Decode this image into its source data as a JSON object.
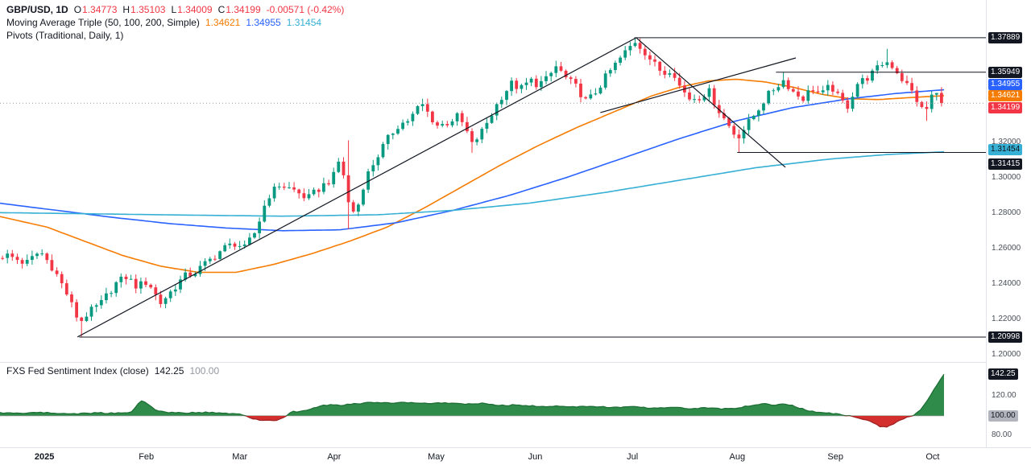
{
  "legend": {
    "row1": {
      "symbol": "GBP/USD, 1D",
      "o_label": "O",
      "o_value": "1.34773",
      "h_label": "H",
      "h_value": "1.35103",
      "l_label": "L",
      "l_value": "1.34009",
      "c_label": "C",
      "c_value": "1.34199",
      "change": "-0.00571 (-0.42%)"
    },
    "row2": {
      "label": "Moving Average Triple (50, 100, 200, Simple)",
      "ma50": "1.34621",
      "ma100": "1.34955",
      "ma200": "1.31454"
    },
    "row3": {
      "label": "Pivots (Traditional, Daily, 1)"
    }
  },
  "sentiment_legend": {
    "label": "FXS Fed Sentiment Index (close)",
    "value": "142.25",
    "base": "100.00"
  },
  "chart_data": {
    "type": "candlestick",
    "symbol": "GBP/USD",
    "timeframe": "1D",
    "ohlc_current": {
      "open": 1.34773,
      "high": 1.35103,
      "low": 1.34009,
      "close": 1.34199,
      "change": -0.00571,
      "change_pct": -0.42
    },
    "bars": 191,
    "price_domain": [
      1.1968,
      1.4002
    ],
    "colors": {
      "up": "#089981",
      "down": "#f23645"
    },
    "price_anchors": [
      [
        0.006,
        1.256
      ],
      [
        0.025,
        1.2515
      ],
      [
        0.04,
        1.2585
      ],
      [
        0.055,
        1.248
      ],
      [
        0.068,
        1.235
      ],
      [
        0.082,
        1.218
      ],
      [
        0.09,
        1.223
      ],
      [
        0.105,
        1.229
      ],
      [
        0.12,
        1.24
      ],
      [
        0.132,
        1.244
      ],
      [
        0.143,
        1.2385
      ],
      [
        0.155,
        1.2415
      ],
      [
        0.168,
        1.229
      ],
      [
        0.18,
        1.236
      ],
      [
        0.193,
        1.244
      ],
      [
        0.205,
        1.2465
      ],
      [
        0.22,
        1.253
      ],
      [
        0.235,
        1.26
      ],
      [
        0.248,
        1.263
      ],
      [
        0.258,
        1.26
      ],
      [
        0.27,
        1.27
      ],
      [
        0.282,
        1.289
      ],
      [
        0.295,
        1.296
      ],
      [
        0.31,
        1.293
      ],
      [
        0.325,
        1.288
      ],
      [
        0.34,
        1.295
      ],
      [
        0.352,
        1.3
      ],
      [
        0.36,
        1.312
      ],
      [
        0.368,
        1.286
      ],
      [
        0.376,
        1.279
      ],
      [
        0.386,
        1.299
      ],
      [
        0.396,
        1.309
      ],
      [
        0.408,
        1.32
      ],
      [
        0.42,
        1.329
      ],
      [
        0.434,
        1.333
      ],
      [
        0.446,
        1.342
      ],
      [
        0.456,
        1.334
      ],
      [
        0.464,
        1.329
      ],
      [
        0.474,
        1.331
      ],
      [
        0.484,
        1.3345
      ],
      [
        0.492,
        1.329
      ],
      [
        0.5,
        1.3185
      ],
      [
        0.51,
        1.3255
      ],
      [
        0.52,
        1.335
      ],
      [
        0.531,
        1.3455
      ],
      [
        0.542,
        1.353
      ],
      [
        0.552,
        1.35
      ],
      [
        0.562,
        1.355
      ],
      [
        0.57,
        1.3525
      ],
      [
        0.58,
        1.3555
      ],
      [
        0.59,
        1.363
      ],
      [
        0.6,
        1.356
      ],
      [
        0.612,
        1.3505
      ],
      [
        0.622,
        1.3425
      ],
      [
        0.632,
        1.3485
      ],
      [
        0.644,
        1.358
      ],
      [
        0.656,
        1.366
      ],
      [
        0.666,
        1.3725
      ],
      [
        0.674,
        1.377
      ],
      [
        0.684,
        1.371
      ],
      [
        0.694,
        1.364
      ],
      [
        0.704,
        1.3585
      ],
      [
        0.713,
        1.362
      ],
      [
        0.722,
        1.3505
      ],
      [
        0.732,
        1.3445
      ],
      [
        0.742,
        1.3455
      ],
      [
        0.752,
        1.349
      ],
      [
        0.762,
        1.3385
      ],
      [
        0.772,
        1.3305
      ],
      [
        0.782,
        1.3225
      ],
      [
        0.792,
        1.329
      ],
      [
        0.802,
        1.3365
      ],
      [
        0.812,
        1.3445
      ],
      [
        0.822,
        1.3505
      ],
      [
        0.832,
        1.355
      ],
      [
        0.842,
        1.3485
      ],
      [
        0.852,
        1.3445
      ],
      [
        0.862,
        1.3505
      ],
      [
        0.872,
        1.3465
      ],
      [
        0.882,
        1.352
      ],
      [
        0.892,
        1.3435
      ],
      [
        0.9,
        1.3405
      ],
      [
        0.91,
        1.353
      ],
      [
        0.92,
        1.356
      ],
      [
        0.93,
        1.3605
      ],
      [
        0.94,
        1.366
      ],
      [
        0.95,
        1.362
      ],
      [
        0.958,
        1.3555
      ],
      [
        0.966,
        1.3505
      ],
      [
        0.974,
        1.3435
      ],
      [
        0.982,
        1.3355
      ],
      [
        0.99,
        1.347
      ],
      [
        1.0,
        1.342
      ]
    ],
    "spikes": [
      {
        "x": 0.086,
        "low": 1.21
      },
      {
        "x": 0.366,
        "high": 1.321
      },
      {
        "x": 0.37,
        "low": 1.271
      },
      {
        "x": 0.448,
        "high": 1.3445
      },
      {
        "x": 0.5,
        "low": 1.314
      },
      {
        "x": 0.674,
        "high": 1.3789
      },
      {
        "x": 0.784,
        "low": 1.3141
      },
      {
        "x": 0.832,
        "high": 1.3595
      },
      {
        "x": 0.942,
        "high": 1.3726
      },
      {
        "x": 0.982,
        "low": 1.332
      }
    ],
    "moving_averages": [
      {
        "name": "SMA 50",
        "color": "#f57c00",
        "value": 1.34621,
        "anchors": [
          [
            0,
            1.278
          ],
          [
            0.05,
            1.272
          ],
          [
            0.09,
            1.264
          ],
          [
            0.13,
            1.256
          ],
          [
            0.17,
            1.25
          ],
          [
            0.21,
            1.2465
          ],
          [
            0.25,
            1.2465
          ],
          [
            0.29,
            1.251
          ],
          [
            0.33,
            1.257
          ],
          [
            0.37,
            1.264
          ],
          [
            0.41,
            1.272
          ],
          [
            0.45,
            1.283
          ],
          [
            0.49,
            1.295
          ],
          [
            0.53,
            1.307
          ],
          [
            0.57,
            1.318
          ],
          [
            0.61,
            1.328
          ],
          [
            0.65,
            1.337
          ],
          [
            0.69,
            1.346
          ],
          [
            0.72,
            1.351
          ],
          [
            0.75,
            1.3545
          ],
          [
            0.78,
            1.3555
          ],
          [
            0.81,
            1.354
          ],
          [
            0.84,
            1.351
          ],
          [
            0.87,
            1.347
          ],
          [
            0.9,
            1.3445
          ],
          [
            0.93,
            1.344
          ],
          [
            0.96,
            1.345
          ],
          [
            1.0,
            1.34621
          ]
        ]
      },
      {
        "name": "SMA 100",
        "color": "#2962ff",
        "value": 1.34955,
        "anchors": [
          [
            0,
            1.2855
          ],
          [
            0.06,
            1.2815
          ],
          [
            0.12,
            1.2775
          ],
          [
            0.18,
            1.274
          ],
          [
            0.24,
            1.2715
          ],
          [
            0.3,
            1.27
          ],
          [
            0.36,
            1.2705
          ],
          [
            0.42,
            1.2745
          ],
          [
            0.48,
            1.2815
          ],
          [
            0.54,
            1.29
          ],
          [
            0.6,
            1.3
          ],
          [
            0.66,
            1.311
          ],
          [
            0.72,
            1.322
          ],
          [
            0.78,
            1.332
          ],
          [
            0.84,
            1.3395
          ],
          [
            0.9,
            1.3445
          ],
          [
            0.95,
            1.3475
          ],
          [
            1.0,
            1.34955
          ]
        ]
      },
      {
        "name": "SMA 200",
        "color": "#36b0d4",
        "value": 1.31454,
        "anchors": [
          [
            0,
            1.2802
          ],
          [
            0.1,
            1.2795
          ],
          [
            0.2,
            1.2788
          ],
          [
            0.3,
            1.2782
          ],
          [
            0.4,
            1.279
          ],
          [
            0.48,
            1.2815
          ],
          [
            0.56,
            1.2855
          ],
          [
            0.64,
            1.2915
          ],
          [
            0.72,
            1.2985
          ],
          [
            0.8,
            1.3055
          ],
          [
            0.88,
            1.3105
          ],
          [
            0.94,
            1.313
          ],
          [
            1.0,
            1.31454
          ]
        ]
      }
    ],
    "levels": [
      {
        "price": 1.37889,
        "x1": 0.672
      },
      {
        "price": 1.35949,
        "x1": 0.822
      },
      {
        "price": 1.31415,
        "x1": 0.781
      },
      {
        "price": 1.20998,
        "x1": 0.084
      }
    ],
    "trendlines": [
      {
        "x1": 0.082,
        "p1": 1.21,
        "x2": 0.674,
        "p2": 1.3789
      },
      {
        "x1": 0.674,
        "p1": 1.3789,
        "x2": 0.832,
        "p2": 1.3058
      },
      {
        "x1": 0.636,
        "p1": 1.3367,
        "x2": 0.843,
        "p2": 1.3675
      }
    ],
    "last_price": 1.34199,
    "y_ticks": [
      {
        "v": 1.32,
        "label": "1.32000"
      },
      {
        "v": 1.3,
        "label": "1.30000"
      },
      {
        "v": 1.28,
        "label": "1.28000"
      },
      {
        "v": 1.26,
        "label": "1.26000"
      },
      {
        "v": 1.24,
        "label": "1.24000"
      },
      {
        "v": 1.22,
        "label": "1.22000"
      },
      {
        "v": 1.2,
        "label": "1.20000"
      }
    ],
    "price_badges": [
      {
        "text": "1.37889",
        "price": 1.37889,
        "bg": "#131722",
        "fg": "#ffffff",
        "dy": 0
      },
      {
        "text": "1.35949",
        "price": 1.35949,
        "bg": "#131722",
        "fg": "#ffffff",
        "dy": 0
      },
      {
        "text": "1.34955",
        "price": 1.34955,
        "bg": "#2962ff",
        "fg": "#ffffff",
        "dy": -7
      },
      {
        "text": "1.34621",
        "price": 1.34621,
        "bg": "#f57c00",
        "fg": "#ffffff",
        "dy": 0
      },
      {
        "text": "1.34199",
        "price": 1.34199,
        "bg": "#f23645",
        "fg": "#ffffff",
        "dy": 6
      },
      {
        "text": "1.31454",
        "price": 1.31454,
        "bg": "#36b0d4",
        "fg": "#0c1017",
        "dy": -3
      },
      {
        "text": "1.31415",
        "price": 1.31415,
        "bg": "#131722",
        "fg": "#ffffff",
        "dy": 14
      },
      {
        "text": "1.20998",
        "price": 1.20998,
        "bg": "#131722",
        "fg": "#ffffff",
        "dy": 0
      }
    ],
    "x_ticks": [
      {
        "label": "2025",
        "x": 0.047,
        "bold": true
      },
      {
        "label": "Feb",
        "x": 0.155
      },
      {
        "label": "Mar",
        "x": 0.254
      },
      {
        "label": "Apr",
        "x": 0.354
      },
      {
        "label": "May",
        "x": 0.462
      },
      {
        "label": "Jun",
        "x": 0.567
      },
      {
        "label": "Jul",
        "x": 0.67
      },
      {
        "label": "Aug",
        "x": 0.781
      },
      {
        "label": "Sep",
        "x": 0.885
      },
      {
        "label": "Oct",
        "x": 0.988
      }
    ],
    "sentiment": {
      "name": "FXS Fed Sentiment Index (close)",
      "current": 142.25,
      "baseline": 100,
      "domain": [
        68,
        153
      ],
      "colors": {
        "up": "#2e8b4a",
        "up_stroke": "#1e6f36",
        "down": "#d32f2f",
        "down_stroke": "#a02121",
        "base_line": "#b2b5be"
      },
      "y_ticks": [
        {
          "v": 120,
          "label": "120.00"
        },
        {
          "v": 80,
          "label": "80.00"
        }
      ],
      "badges": [
        {
          "text": "142.25",
          "value": 142.25,
          "bg": "#131722",
          "fg": "#ffffff"
        },
        {
          "text": "100.00",
          "value": 100,
          "bg": "#b2b5be",
          "fg": "#131722"
        }
      ],
      "anchors": [
        [
          0.0,
          103
        ],
        [
          0.02,
          102.5
        ],
        [
          0.04,
          103.5
        ],
        [
          0.06,
          102.5
        ],
        [
          0.08,
          102
        ],
        [
          0.1,
          103
        ],
        [
          0.12,
          102.5
        ],
        [
          0.14,
          104
        ],
        [
          0.148,
          115
        ],
        [
          0.156,
          113
        ],
        [
          0.165,
          105
        ],
        [
          0.18,
          103.5
        ],
        [
          0.2,
          103
        ],
        [
          0.22,
          103.5
        ],
        [
          0.24,
          102.5
        ],
        [
          0.258,
          101
        ],
        [
          0.268,
          97
        ],
        [
          0.28,
          95
        ],
        [
          0.295,
          95.5
        ],
        [
          0.302,
          99
        ],
        [
          0.308,
          104
        ],
        [
          0.32,
          104.5
        ],
        [
          0.33,
          107
        ],
        [
          0.345,
          111
        ],
        [
          0.36,
          110.5
        ],
        [
          0.375,
          112
        ],
        [
          0.39,
          113.5
        ],
        [
          0.41,
          113
        ],
        [
          0.43,
          113.5
        ],
        [
          0.45,
          112.5
        ],
        [
          0.47,
          113
        ],
        [
          0.49,
          112
        ],
        [
          0.51,
          112.5
        ],
        [
          0.53,
          110.5
        ],
        [
          0.55,
          111
        ],
        [
          0.57,
          109.5
        ],
        [
          0.59,
          110
        ],
        [
          0.61,
          109
        ],
        [
          0.63,
          109.5
        ],
        [
          0.65,
          108.5
        ],
        [
          0.67,
          109
        ],
        [
          0.69,
          108
        ],
        [
          0.71,
          108.5
        ],
        [
          0.73,
          107.5
        ],
        [
          0.75,
          108
        ],
        [
          0.765,
          107
        ],
        [
          0.78,
          108
        ],
        [
          0.795,
          110
        ],
        [
          0.81,
          112
        ],
        [
          0.82,
          111
        ],
        [
          0.83,
          112.5
        ],
        [
          0.84,
          110
        ],
        [
          0.85,
          107
        ],
        [
          0.862,
          104
        ],
        [
          0.875,
          103
        ],
        [
          0.888,
          101.5
        ],
        [
          0.9,
          100
        ],
        [
          0.91,
          97
        ],
        [
          0.92,
          96
        ],
        [
          0.93,
          90
        ],
        [
          0.938,
          88
        ],
        [
          0.946,
          91
        ],
        [
          0.954,
          96
        ],
        [
          0.962,
          99
        ],
        [
          0.968,
          101
        ],
        [
          0.975,
          106
        ],
        [
          0.982,
          115
        ],
        [
          0.99,
          128
        ],
        [
          1.0,
          142.25
        ]
      ]
    }
  }
}
